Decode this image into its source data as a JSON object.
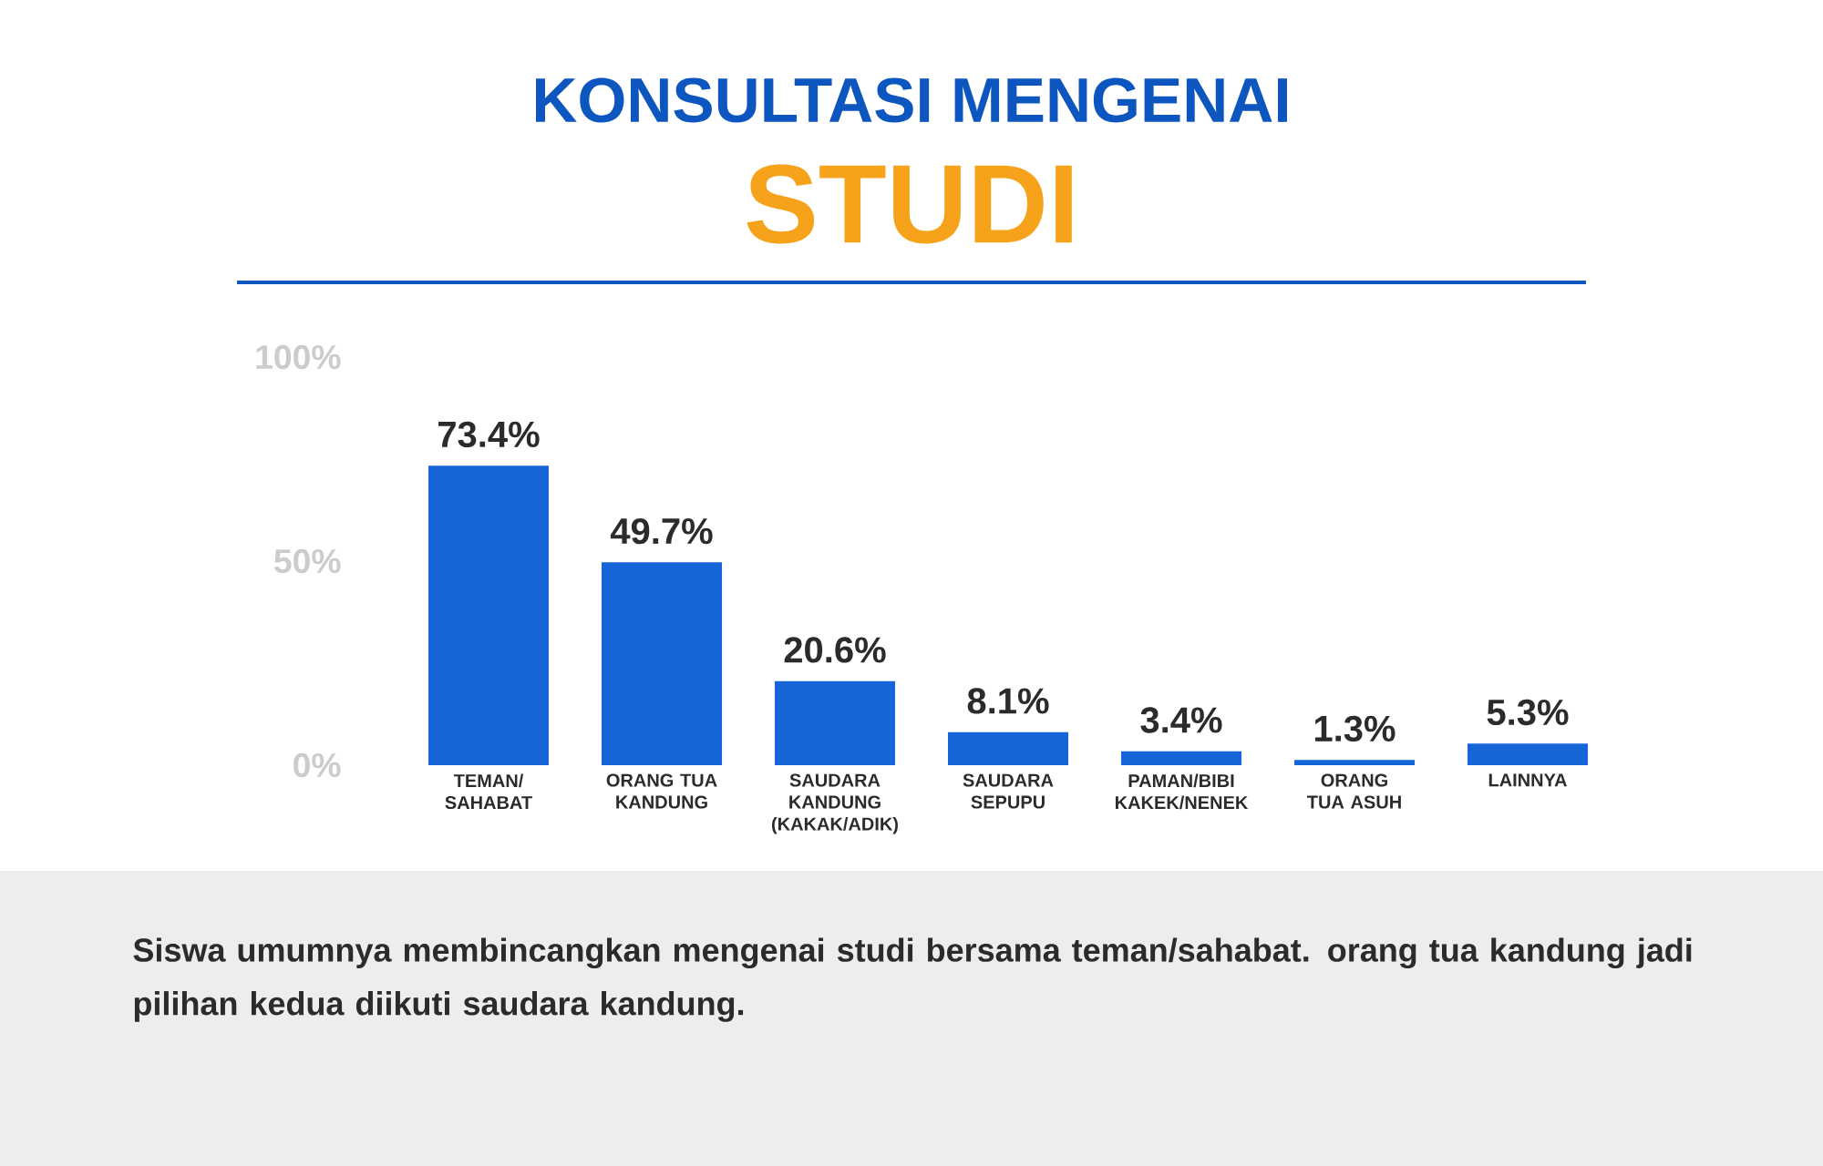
{
  "chart_data": {
    "type": "bar",
    "title": "KONSULTASI MENGENAI",
    "subtitle": "STUDI",
    "categories": [
      "TEMAN/ SAHABAT",
      "ORANG TUA KANDUNG",
      "SAUDARA KANDUNG (KAKAK/ADIK)",
      "SAUDARA SEPUPU",
      "PAMAN/BIBI KAKEK/NENEK",
      "ORANG TUA ASUH",
      "LAINNYA"
    ],
    "values": [
      73.4,
      49.7,
      20.6,
      8.1,
      3.4,
      1.3,
      5.3
    ],
    "value_labels": [
      "73.4%",
      "49.7%",
      "20.6%",
      "8.1%",
      "3.4%",
      "1.3%",
      "5.3%"
    ],
    "color": "#1565d8",
    "ylim": [
      0,
      100
    ],
    "yticks": [
      {
        "value": 0,
        "label": "0%"
      },
      {
        "value": 50,
        "label": "50%"
      },
      {
        "value": 100,
        "label": "100%"
      }
    ],
    "annotations": [
      "Siswa umumnya membincangkan mengenai studi bersama teman/sahabat. orang tua kandung jadi pilihan kedua diikuti saudara kandung."
    ]
  }
}
